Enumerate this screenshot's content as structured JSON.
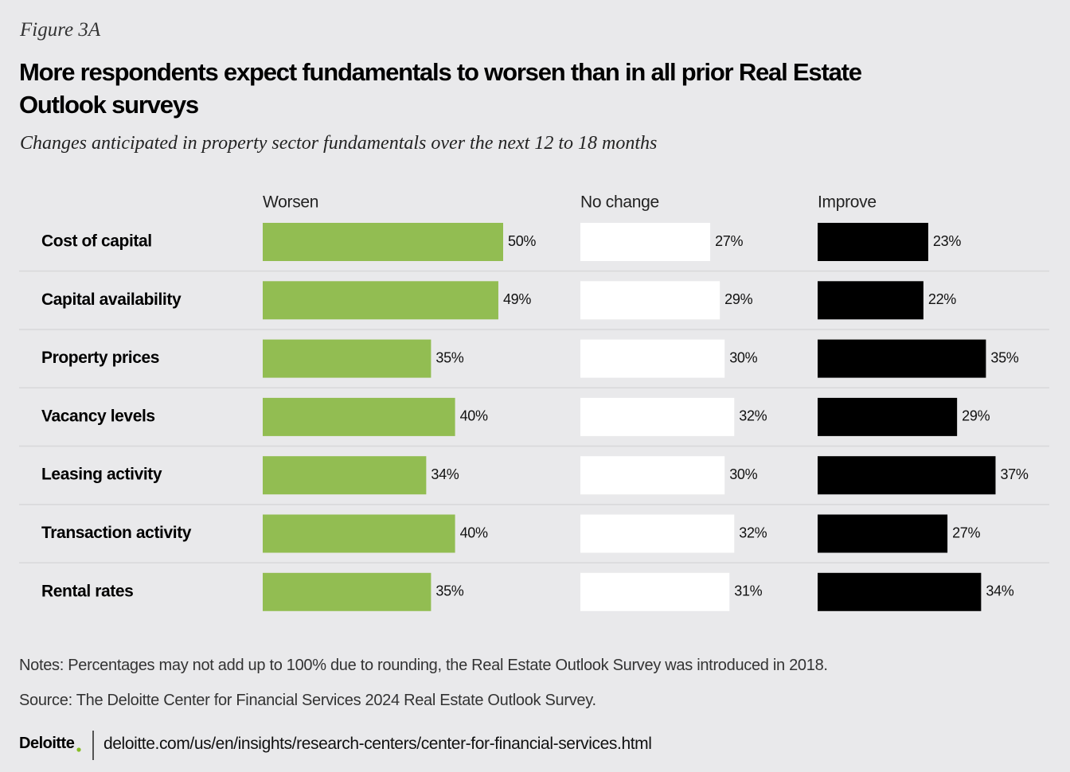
{
  "figure_label": "Figure 3A",
  "chart_data": {
    "type": "bar",
    "orientation": "horizontal",
    "title": "More respondents expect fundamentals to worsen than in all prior Real Estate Outlook surveys",
    "subtitle": "Changes anticipated in property sector fundamentals over the next 12 to 18 months",
    "categories": [
      "Cost of capital",
      "Capital availability",
      "Property prices",
      "Vacancy levels",
      "Leasing activity",
      "Transaction activity",
      "Rental rates"
    ],
    "series": [
      {
        "name": "Worsen",
        "color": "#92bd52",
        "values": [
          50,
          49,
          35,
          40,
          34,
          40,
          35
        ],
        "value_labels": [
          "50%",
          "49%",
          "35%",
          "40%",
          "34%",
          "40%",
          "35%"
        ]
      },
      {
        "name": "No change",
        "color": "#ffffff",
        "values": [
          27,
          29,
          30,
          32,
          30,
          32,
          31
        ],
        "value_labels": [
          "27%",
          "29%",
          "30%",
          "32%",
          "30%",
          "32%",
          "31%"
        ]
      },
      {
        "name": "Improve",
        "color": "#000000",
        "values": [
          23,
          22,
          35,
          29,
          37,
          27,
          34
        ],
        "value_labels": [
          "23%",
          "22%",
          "35%",
          "29%",
          "37%",
          "27%",
          "34%"
        ]
      }
    ]
  },
  "notes": "Notes: Percentages may not add up to 100% due to rounding, the Real Estate Outlook Survey was introduced in 2018.",
  "source": "Source: The Deloitte Center for Financial Services 2024 Real Estate Outlook Survey.",
  "footer": {
    "brand": "Deloitte",
    "url": "deloitte.com/us/en/insights/research-centers/center-for-financial-services.html"
  }
}
